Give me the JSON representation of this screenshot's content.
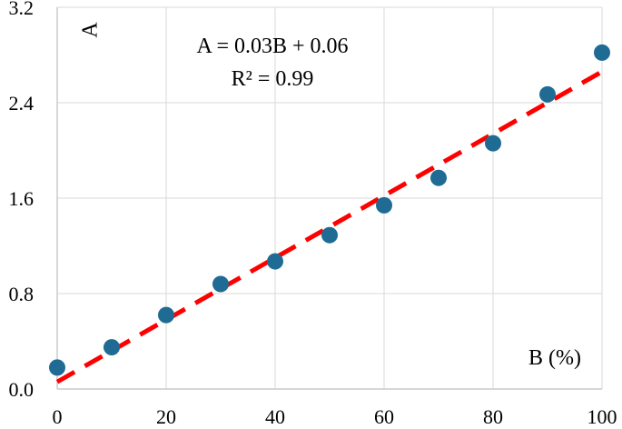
{
  "chart_data": {
    "type": "scatter",
    "xlabel": "B (%)",
    "ylabel": "A",
    "xlim": [
      0,
      100
    ],
    "ylim": [
      0.0,
      3.2
    ],
    "x_ticks": [
      "0",
      "20",
      "40",
      "60",
      "80",
      "100"
    ],
    "y_ticks": [
      "0.0",
      "0.8",
      "1.6",
      "2.4",
      "3.2"
    ],
    "grid": true,
    "series": [
      {
        "x": [
          0,
          10,
          20,
          30,
          40,
          50,
          60,
          70,
          80,
          90,
          100
        ],
        "y": [
          0.18,
          0.35,
          0.62,
          0.88,
          1.07,
          1.29,
          1.54,
          1.77,
          2.06,
          2.47,
          2.82
        ],
        "color": "#1f6b94"
      }
    ],
    "trendline": {
      "equation": "A = 0.03B + 0.06",
      "r_squared": "R² = 0.99",
      "slope": 0.026,
      "intercept": 0.06,
      "color": "#ff0000",
      "style": "dashed"
    }
  }
}
